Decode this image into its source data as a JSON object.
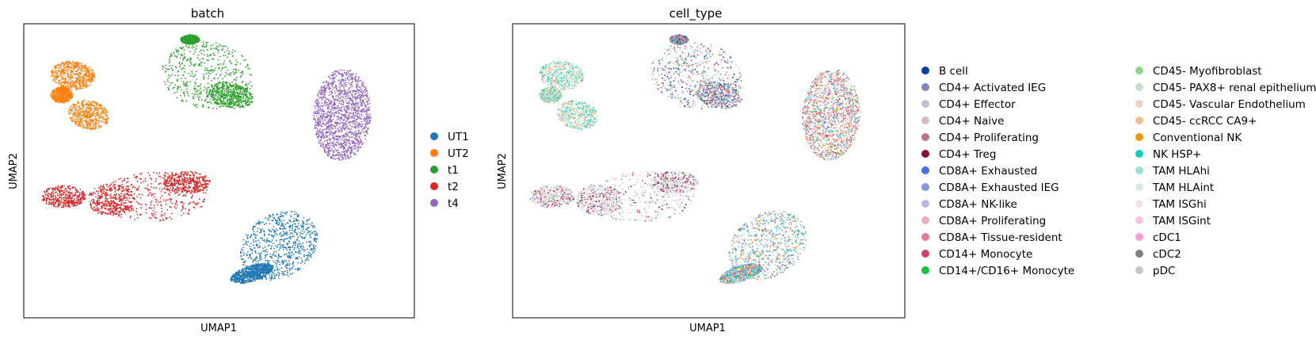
{
  "chart_data": [
    {
      "type": "scatter",
      "title": "batch",
      "xlabel": "UMAP1",
      "ylabel": "UMAP2",
      "xticks": [],
      "yticks": [],
      "legend": "right",
      "series": [
        {
          "name": "UT1",
          "color": "#1f77b4"
        },
        {
          "name": "UT2",
          "color": "#ff7f0e"
        },
        {
          "name": "t1",
          "color": "#2ca02c"
        },
        {
          "name": "t2",
          "color": "#d62728"
        },
        {
          "name": "t4",
          "color": "#9467bd"
        }
      ]
    },
    {
      "type": "scatter",
      "title": "cell_type",
      "xlabel": "UMAP1",
      "ylabel": "UMAP2",
      "xticks": [],
      "yticks": [],
      "legend": "right",
      "legend_columns": 2,
      "series": [
        {
          "name": "B cell",
          "color": "#023fa5"
        },
        {
          "name": "CD4+ Activated IEG",
          "color": "#7d87b9"
        },
        {
          "name": "CD4+ Effector",
          "color": "#bec1d4"
        },
        {
          "name": "CD4+ Naive",
          "color": "#d6bcc0"
        },
        {
          "name": "CD4+ Proliferating",
          "color": "#bb7784"
        },
        {
          "name": "CD4+ Treg",
          "color": "#8e063b"
        },
        {
          "name": "CD8A+ Exhausted",
          "color": "#4a6fe3"
        },
        {
          "name": "CD8A+ Exhausted IEG",
          "color": "#8595e1"
        },
        {
          "name": "CD8A+ NK-like",
          "color": "#b5bbe3"
        },
        {
          "name": "CD8A+ Proliferating",
          "color": "#e6afb9"
        },
        {
          "name": "CD8A+ Tissue-resident",
          "color": "#e07b91"
        },
        {
          "name": "CD14+ Monocyte",
          "color": "#d33f6a"
        },
        {
          "name": "CD14+/CD16+ Monocyte",
          "color": "#11c638"
        },
        {
          "name": "CD45- Myofibroblast",
          "color": "#8dd593"
        },
        {
          "name": "CD45- PAX8+ renal epithelium",
          "color": "#c6dec7"
        },
        {
          "name": "CD45- Vascular Endothelium",
          "color": "#ead3c6"
        },
        {
          "name": "CD45- ccRCC CA9+",
          "color": "#f0b98d"
        },
        {
          "name": "Conventional NK",
          "color": "#ef9708"
        },
        {
          "name": "NK HSP+",
          "color": "#0fcfc0"
        },
        {
          "name": "TAM HLAhi",
          "color": "#9cded6"
        },
        {
          "name": "TAM HLAint",
          "color": "#d5eae7"
        },
        {
          "name": "TAM ISGhi",
          "color": "#f3e1eb"
        },
        {
          "name": "TAM ISGint",
          "color": "#f6c4e1"
        },
        {
          "name": "cDC1",
          "color": "#f79cd4"
        },
        {
          "name": "cDC2",
          "color": "#7f7f7f"
        },
        {
          "name": "pDC",
          "color": "#c7c7c7"
        }
      ]
    }
  ]
}
